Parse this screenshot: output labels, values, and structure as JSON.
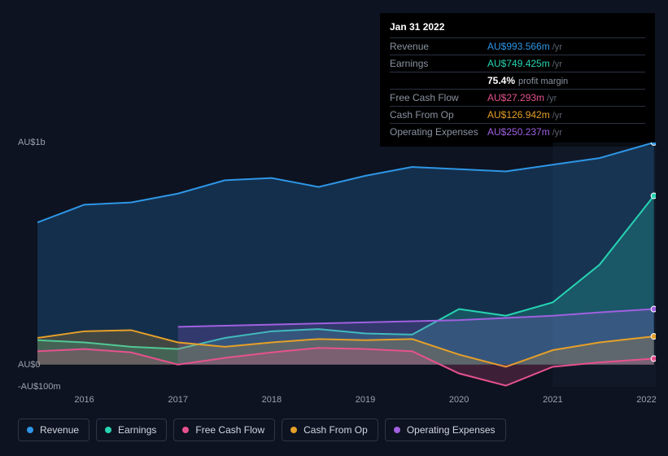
{
  "tooltip": {
    "date": "Jan 31 2022",
    "rows": [
      {
        "label": "Revenue",
        "value": "AU$993.566m",
        "suffix": "/yr",
        "color": "#2e96e6"
      },
      {
        "label": "Earnings",
        "value": "AU$749.425m",
        "suffix": "/yr",
        "color": "#27d4b2",
        "sub_value": "75.4%",
        "sub_label": "profit margin"
      },
      {
        "label": "Free Cash Flow",
        "value": "AU$27.293m",
        "suffix": "/yr",
        "color": "#e6528e"
      },
      {
        "label": "Cash From Op",
        "value": "AU$126.942m",
        "suffix": "/yr",
        "color": "#e6a028"
      },
      {
        "label": "Operating Expenses",
        "value": "AU$250.237m",
        "suffix": "/yr",
        "color": "#a060e0"
      }
    ]
  },
  "legend": [
    {
      "label": "Revenue",
      "color": "#2e96e6"
    },
    {
      "label": "Earnings",
      "color": "#27d4b2"
    },
    {
      "label": "Free Cash Flow",
      "color": "#e6528e"
    },
    {
      "label": "Cash From Op",
      "color": "#e6a028"
    },
    {
      "label": "Operating Expenses",
      "color": "#a060e0"
    }
  ],
  "chart": {
    "type": "area",
    "background_color": "#0d1320",
    "grid_color": "#1a2232",
    "line_width": 2,
    "area_opacity": 0.22,
    "x_axis": {
      "min": 2015.5,
      "max": 2022.1,
      "ticks": [
        2016,
        2017,
        2018,
        2019,
        2020,
        2021,
        2022
      ],
      "tick_labels": [
        "2016",
        "2017",
        "2018",
        "2019",
        "2020",
        "2021",
        "2022"
      ],
      "fontsize": 11
    },
    "y_axis": {
      "min": -100,
      "max": 1000,
      "ticks": [
        -100,
        0,
        1000
      ],
      "tick_labels": [
        "-AU$100m",
        "AU$0",
        "AU$1b"
      ],
      "fontsize": 11
    },
    "series": [
      {
        "name": "Revenue",
        "color": "#2e96e6",
        "x": [
          2015.5,
          2016,
          2016.5,
          2017,
          2017.5,
          2018,
          2018.5,
          2019,
          2019.5,
          2020,
          2020.5,
          2021,
          2021.5,
          2022.08
        ],
        "y": [
          640,
          720,
          730,
          770,
          830,
          840,
          800,
          850,
          890,
          880,
          870,
          900,
          930,
          1000
        ]
      },
      {
        "name": "Earnings",
        "color": "#27d4b2",
        "x": [
          2015.5,
          2016,
          2016.5,
          2017,
          2017.5,
          2018,
          2018.5,
          2019,
          2019.5,
          2020,
          2020.5,
          2021,
          2021.5,
          2022.08
        ],
        "y": [
          110,
          100,
          80,
          70,
          120,
          150,
          160,
          140,
          135,
          250,
          220,
          280,
          450,
          760
        ]
      },
      {
        "name": "Operating Expenses",
        "color": "#a060e0",
        "x": [
          2017,
          2017.5,
          2018,
          2018.5,
          2019,
          2019.5,
          2020,
          2020.5,
          2021,
          2021.5,
          2022.08
        ],
        "y": [
          170,
          175,
          180,
          185,
          190,
          195,
          200,
          210,
          220,
          235,
          250
        ]
      },
      {
        "name": "Cash From Op",
        "color": "#e6a028",
        "x": [
          2015.5,
          2016,
          2016.5,
          2017,
          2017.5,
          2018,
          2018.5,
          2019,
          2019.5,
          2020,
          2020.5,
          2021,
          2021.5,
          2022.08
        ],
        "y": [
          120,
          150,
          155,
          100,
          80,
          100,
          115,
          110,
          115,
          45,
          -10,
          65,
          100,
          127
        ]
      },
      {
        "name": "Free Cash Flow",
        "color": "#e6528e",
        "x": [
          2015.5,
          2016,
          2016.5,
          2017,
          2017.5,
          2018,
          2018.5,
          2019,
          2019.5,
          2020,
          2020.5,
          2021,
          2021.5,
          2022.08
        ],
        "y": [
          60,
          70,
          55,
          0,
          30,
          55,
          75,
          70,
          60,
          -40,
          -95,
          -10,
          10,
          27
        ]
      }
    ]
  }
}
